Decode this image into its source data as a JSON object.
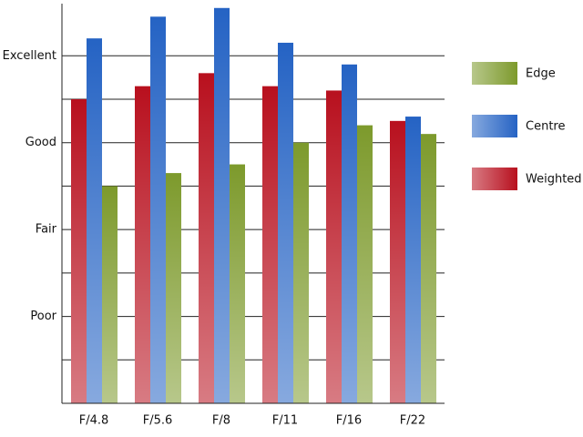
{
  "chart_data": {
    "type": "bar",
    "categories": [
      "F/4.8",
      "F/5.6",
      "F/8",
      "F/11",
      "F/16",
      "F/22"
    ],
    "series": [
      {
        "name": "Edge",
        "color": "#7d9a2c",
        "values": [
          2.5,
          2.65,
          2.75,
          3.0,
          3.2,
          3.1
        ]
      },
      {
        "name": "Centre",
        "color": "#2563c4",
        "values": [
          4.2,
          4.45,
          4.55,
          4.15,
          3.9,
          3.3
        ]
      },
      {
        "name": "Weighted",
        "color": "#b8101e",
        "values": [
          3.5,
          3.65,
          3.8,
          3.65,
          3.6,
          3.25
        ]
      }
    ],
    "ylim": [
      0,
      4.6
    ],
    "yticks": [
      {
        "value": 1,
        "label": "Poor"
      },
      {
        "value": 2,
        "label": "Fair"
      },
      {
        "value": 3,
        "label": "Good"
      },
      {
        "value": 4,
        "label": "Excellent"
      }
    ],
    "yminor": [
      0.5,
      1.5,
      2.5,
      3.5
    ],
    "grid": true,
    "legend": "right"
  }
}
